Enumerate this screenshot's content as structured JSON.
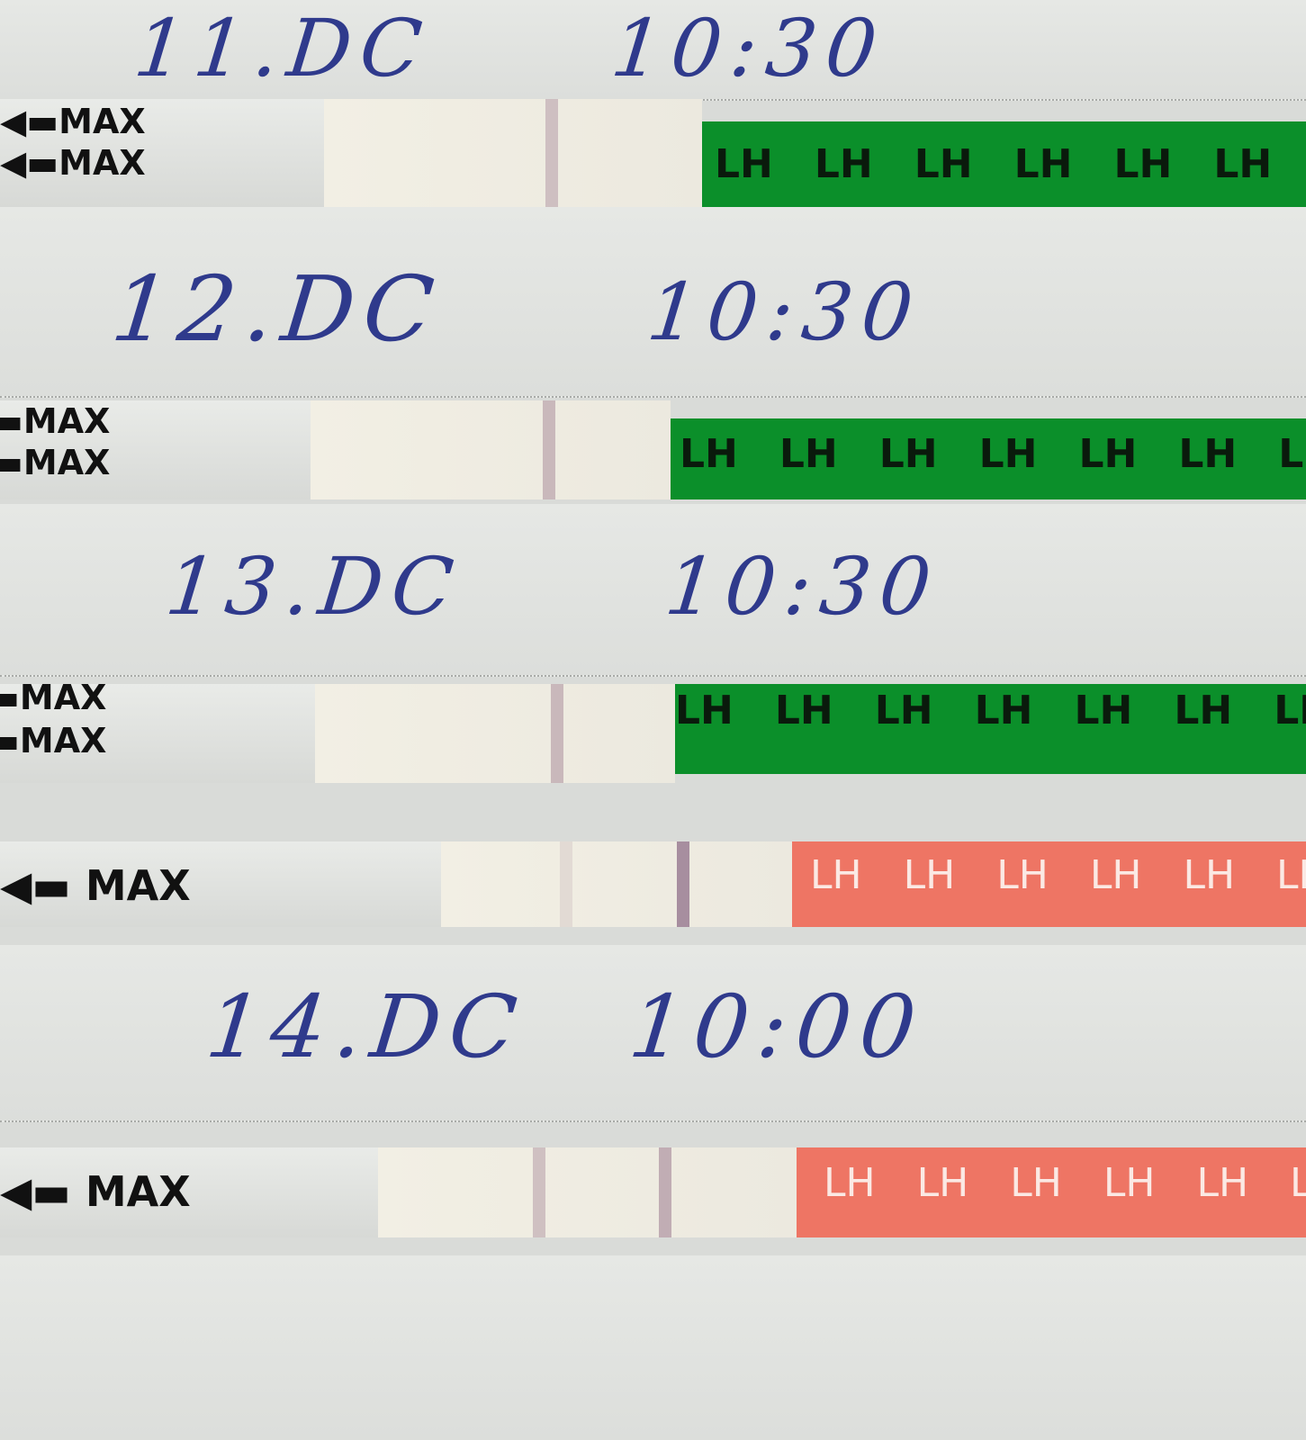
{
  "labels": [
    {
      "day": "11.DC",
      "time": "10:30"
    },
    {
      "day": "12.DC",
      "time": "10:30"
    },
    {
      "day": "13.DC",
      "time": "10:30"
    },
    {
      "day": "14.DC",
      "time": "10:00"
    }
  ],
  "strip_text": {
    "max": "MAX",
    "band": "LH"
  },
  "colors": {
    "ink": "#2f3a8c",
    "green_band": "#0b8f2a",
    "red_band": "#ee7564",
    "test_line": "#b9a2ab"
  }
}
